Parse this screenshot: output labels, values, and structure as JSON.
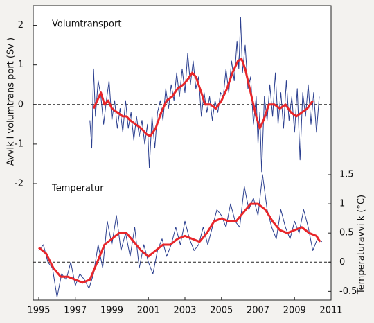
{
  "chart_data": [
    {
      "type": "line",
      "title": "Volumtransport",
      "ylabel": "Avvik i volumtrans port (Sv )",
      "yaxis_side": "left",
      "xlim": [
        1995,
        2011
      ],
      "ylim": [
        -2,
        2.5
      ],
      "yticks": [
        2,
        1,
        0,
        -1,
        -2
      ],
      "zero_line": true,
      "series": [
        {
          "color": "#2b3f8f",
          "width": 1,
          "x": [
            1997.8,
            1997.9,
            1998.0,
            1998.1,
            1998.25,
            1998.4,
            1998.55,
            1998.7,
            1998.85,
            1999.0,
            1999.15,
            1999.3,
            1999.45,
            1999.6,
            1999.75,
            1999.9,
            2000.05,
            2000.2,
            2000.35,
            2000.5,
            2000.65,
            2000.8,
            2000.95,
            2001.05,
            2001.2,
            2001.35,
            2001.5,
            2001.65,
            2001.8,
            2001.95,
            2002.1,
            2002.25,
            2002.4,
            2002.55,
            2002.7,
            2002.85,
            2003.0,
            2003.15,
            2003.3,
            2003.45,
            2003.6,
            2003.75,
            2003.9,
            2004.05,
            2004.2,
            2004.35,
            2004.5,
            2004.65,
            2004.8,
            2004.95,
            2005.1,
            2005.25,
            2005.4,
            2005.55,
            2005.7,
            2005.85,
            2005.95,
            2006.05,
            2006.15,
            2006.3,
            2006.45,
            2006.6,
            2006.75,
            2006.9,
            2007.0,
            2007.1,
            2007.2,
            2007.35,
            2007.5,
            2007.65,
            2007.8,
            2007.95,
            2008.1,
            2008.25,
            2008.4,
            2008.55,
            2008.7,
            2008.85,
            2009.0,
            2009.15,
            2009.3,
            2009.45,
            2009.6,
            2009.75,
            2009.9,
            2010.05,
            2010.2,
            2010.35
          ],
          "values": [
            -0.4,
            -1.1,
            0.9,
            -0.3,
            0.6,
            0.2,
            -0.5,
            0.1,
            0.6,
            -0.4,
            0.1,
            -0.6,
            -0.1,
            -0.7,
            0.1,
            -0.6,
            -0.2,
            -0.9,
            -0.3,
            -0.8,
            -0.4,
            -1.0,
            -0.5,
            -1.6,
            -0.3,
            -1.1,
            -0.2,
            0.1,
            -0.4,
            0.4,
            -0.1,
            0.5,
            0.1,
            0.8,
            0.2,
            0.9,
            0.3,
            1.3,
            0.5,
            1.1,
            0.4,
            0.7,
            -0.3,
            0.3,
            -0.2,
            0.2,
            -0.4,
            0.1,
            -0.2,
            0.3,
            0.2,
            0.9,
            0.3,
            1.1,
            0.6,
            1.6,
            0.9,
            2.2,
            0.8,
            1.5,
            0.4,
            0.7,
            -0.5,
            0.2,
            -1.0,
            -0.2,
            -1.7,
            0.2,
            -0.4,
            0.5,
            -0.3,
            0.8,
            -0.5,
            0.3,
            -0.6,
            0.6,
            -0.4,
            0.2,
            -0.7,
            0.4,
            -1.4,
            0.3,
            -0.3,
            0.5,
            -0.5,
            0.3,
            -0.7,
            0.2
          ]
        },
        {
          "color": "#e8262a",
          "width": 3,
          "x": [
            1998.0,
            1998.2,
            1998.4,
            1998.6,
            1998.8,
            1999.0,
            1999.3,
            1999.6,
            1999.8,
            2000.0,
            2000.3,
            2000.6,
            2000.9,
            2001.1,
            2001.4,
            2001.7,
            2002.0,
            2002.3,
            2002.6,
            2002.9,
            2003.1,
            2003.4,
            2003.6,
            2003.9,
            2004.1,
            2004.4,
            2004.7,
            2005.0,
            2005.3,
            2005.6,
            2005.9,
            2006.1,
            2006.3,
            2006.6,
            2006.9,
            2007.1,
            2007.3,
            2007.6,
            2007.9,
            2008.2,
            2008.5,
            2008.8,
            2009.1,
            2009.4,
            2009.7,
            2010.0
          ],
          "values": [
            -0.1,
            0.1,
            0.3,
            0.0,
            0.1,
            -0.1,
            -0.2,
            -0.3,
            -0.3,
            -0.4,
            -0.5,
            -0.6,
            -0.75,
            -0.8,
            -0.6,
            -0.2,
            0.1,
            0.2,
            0.4,
            0.5,
            0.6,
            0.8,
            0.7,
            0.3,
            0.0,
            0.0,
            -0.1,
            0.1,
            0.4,
            0.8,
            1.1,
            1.15,
            0.9,
            0.3,
            -0.3,
            -0.6,
            -0.4,
            0.0,
            0.0,
            -0.1,
            0.0,
            -0.2,
            -0.3,
            -0.2,
            -0.1,
            0.1
          ]
        }
      ]
    },
    {
      "type": "line",
      "title": "Temperatur",
      "ylabel": "Temperaturavvi k (°C)",
      "yaxis_side": "right",
      "xlim": [
        1995,
        2011
      ],
      "xticks": [
        1995,
        1997,
        1999,
        2001,
        2003,
        2005,
        2007,
        2009,
        2011
      ],
      "ylim": [
        -0.65,
        1.5
      ],
      "yticks": [
        1.5,
        1,
        0.5,
        0,
        -0.5
      ],
      "zero_line": true,
      "series": [
        {
          "color": "#2b3f8f",
          "width": 1,
          "x": [
            1995.0,
            1995.25,
            1995.5,
            1995.75,
            1996.0,
            1996.25,
            1996.5,
            1996.75,
            1997.0,
            1997.25,
            1997.5,
            1997.75,
            1998.0,
            1998.25,
            1998.5,
            1998.75,
            1999.0,
            1999.25,
            1999.5,
            1999.75,
            2000.0,
            2000.25,
            2000.5,
            2000.75,
            2001.0,
            2001.25,
            2001.5,
            2001.75,
            2002.0,
            2002.25,
            2002.5,
            2002.75,
            2003.0,
            2003.25,
            2003.5,
            2003.75,
            2004.0,
            2004.25,
            2004.5,
            2004.75,
            2005.0,
            2005.25,
            2005.5,
            2005.75,
            2006.0,
            2006.25,
            2006.5,
            2006.75,
            2007.0,
            2007.25,
            2007.5,
            2007.75,
            2008.0,
            2008.25,
            2008.5,
            2008.75,
            2009.0,
            2009.25,
            2009.5,
            2009.75,
            2010.0,
            2010.25,
            2010.5
          ],
          "values": [
            0.2,
            0.3,
            0.0,
            -0.1,
            -0.6,
            -0.2,
            -0.3,
            0.0,
            -0.4,
            -0.2,
            -0.3,
            -0.45,
            -0.2,
            0.3,
            -0.1,
            0.7,
            0.3,
            0.8,
            0.2,
            0.5,
            0.1,
            0.6,
            -0.1,
            0.3,
            0.0,
            -0.2,
            0.2,
            0.4,
            0.1,
            0.3,
            0.6,
            0.3,
            0.7,
            0.4,
            0.2,
            0.3,
            0.6,
            0.3,
            0.6,
            0.9,
            0.8,
            0.6,
            1.0,
            0.7,
            0.6,
            1.3,
            0.9,
            1.1,
            0.8,
            1.5,
            0.9,
            0.6,
            0.4,
            0.9,
            0.6,
            0.4,
            0.7,
            0.5,
            0.9,
            0.6,
            0.2,
            0.4,
            0.35
          ]
        },
        {
          "color": "#e8262a",
          "width": 3,
          "x": [
            1995.0,
            1995.4,
            1995.8,
            1996.2,
            1996.6,
            1997.0,
            1997.4,
            1997.8,
            1998.2,
            1998.6,
            1999.0,
            1999.4,
            1999.8,
            2000.2,
            2000.6,
            2001.0,
            2001.4,
            2001.8,
            2002.2,
            2002.6,
            2003.0,
            2003.4,
            2003.8,
            2004.2,
            2004.6,
            2005.0,
            2005.4,
            2005.8,
            2006.2,
            2006.6,
            2007.0,
            2007.4,
            2007.8,
            2008.2,
            2008.6,
            2009.0,
            2009.4,
            2009.8,
            2010.2,
            2010.4
          ],
          "values": [
            0.25,
            0.15,
            -0.1,
            -0.25,
            -0.25,
            -0.3,
            -0.35,
            -0.3,
            0.0,
            0.3,
            0.4,
            0.5,
            0.5,
            0.35,
            0.2,
            0.1,
            0.2,
            0.3,
            0.3,
            0.4,
            0.45,
            0.4,
            0.35,
            0.5,
            0.7,
            0.75,
            0.7,
            0.7,
            0.85,
            1.0,
            1.0,
            0.9,
            0.7,
            0.55,
            0.5,
            0.55,
            0.6,
            0.5,
            0.45,
            0.35
          ]
        }
      ]
    }
  ]
}
